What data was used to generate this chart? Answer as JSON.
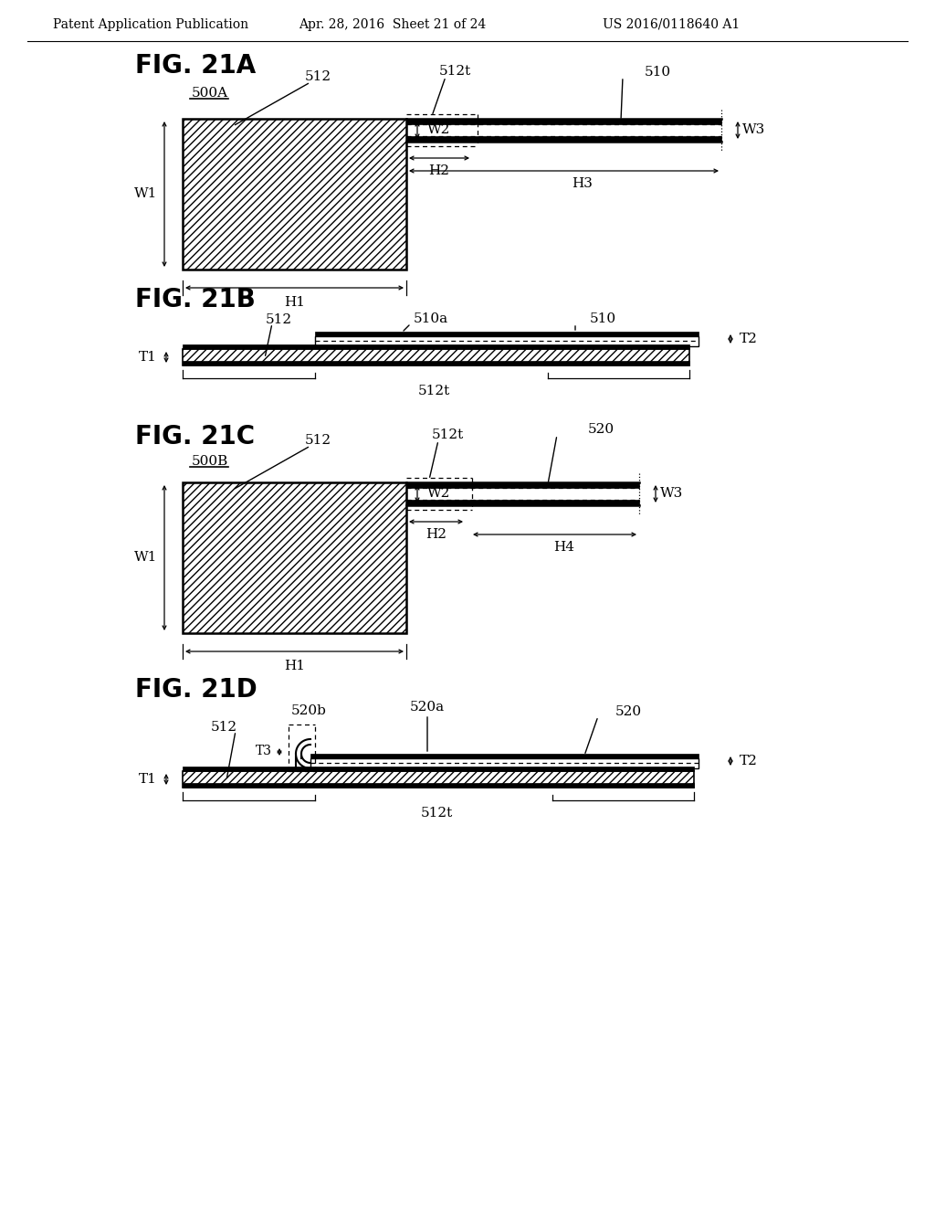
{
  "header_left": "Patent Application Publication",
  "header_center": "Apr. 28, 2016  Sheet 21 of 24",
  "header_right": "US 2016/0118640 A1",
  "background": "#ffffff",
  "line_color": "#000000"
}
